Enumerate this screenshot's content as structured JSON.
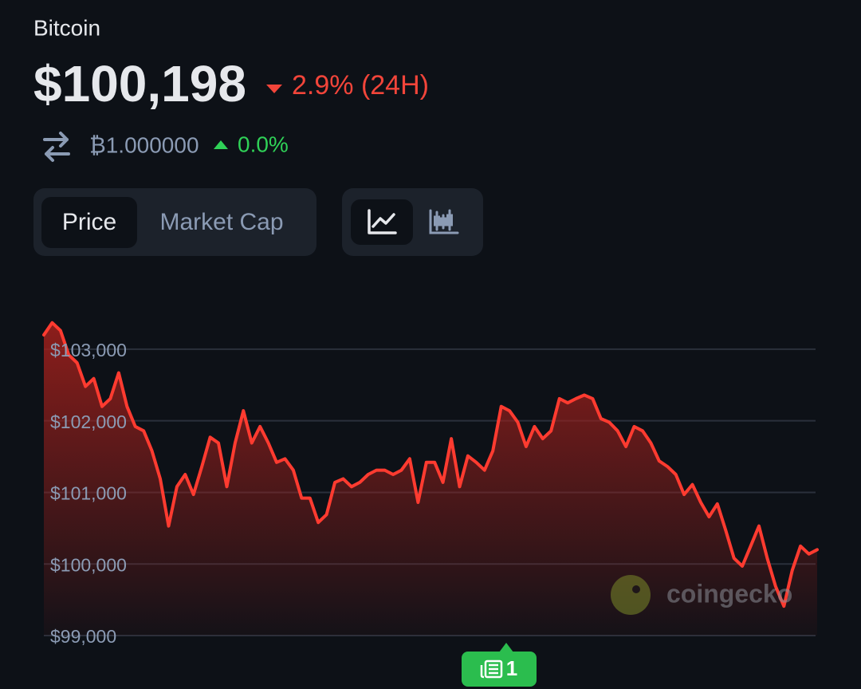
{
  "header": {
    "name": "Bitcoin",
    "price": "$100,198",
    "change": "2.9% (24H)",
    "btc_price": "₿1.000000",
    "btc_change": "0.0%"
  },
  "tabs": [
    "Price",
    "Market Cap"
  ],
  "watermark": "coingecko",
  "news_count": 1,
  "chart_data": {
    "type": "line",
    "color": "#ff3b30",
    "values": [
      103200,
      103370,
      103260,
      102920,
      102810,
      102480,
      102590,
      102200,
      102310,
      102670,
      102200,
      101920,
      101860,
      101580,
      101190,
      100530,
      101080,
      101250,
      100970,
      101360,
      101770,
      101690,
      101080,
      101690,
      102140,
      101690,
      101920,
      101690,
      101420,
      101470,
      101310,
      100920,
      100920,
      100580,
      100690,
      101140,
      101190,
      101080,
      101140,
      101250,
      101310,
      101310,
      101250,
      101310,
      101470,
      100860,
      101420,
      101420,
      101140,
      101750,
      101080,
      101510,
      101420,
      101310,
      101580,
      102200,
      102140,
      101980,
      101640,
      101920,
      101750,
      101860,
      102310,
      102250,
      102310,
      102360,
      102310,
      102030,
      101980,
      101860,
      101640,
      101920,
      101860,
      101690,
      101440,
      101360,
      101250,
      100970,
      101110,
      100860,
      100660,
      100840,
      100470,
      100080,
      99970,
      100250,
      100530,
      100080,
      99690,
      99410,
      99910,
      100250,
      100140,
      100200
    ],
    "ylim": [
      99000,
      103400
    ],
    "yticks": [
      {
        "value": 99000,
        "label": "$99,000"
      },
      {
        "value": 100000,
        "label": "$100,000"
      },
      {
        "value": 101000,
        "label": "$101,000"
      },
      {
        "value": 102000,
        "label": "$102,000"
      },
      {
        "value": 103000,
        "label": "$103,000"
      }
    ],
    "grid": true
  }
}
